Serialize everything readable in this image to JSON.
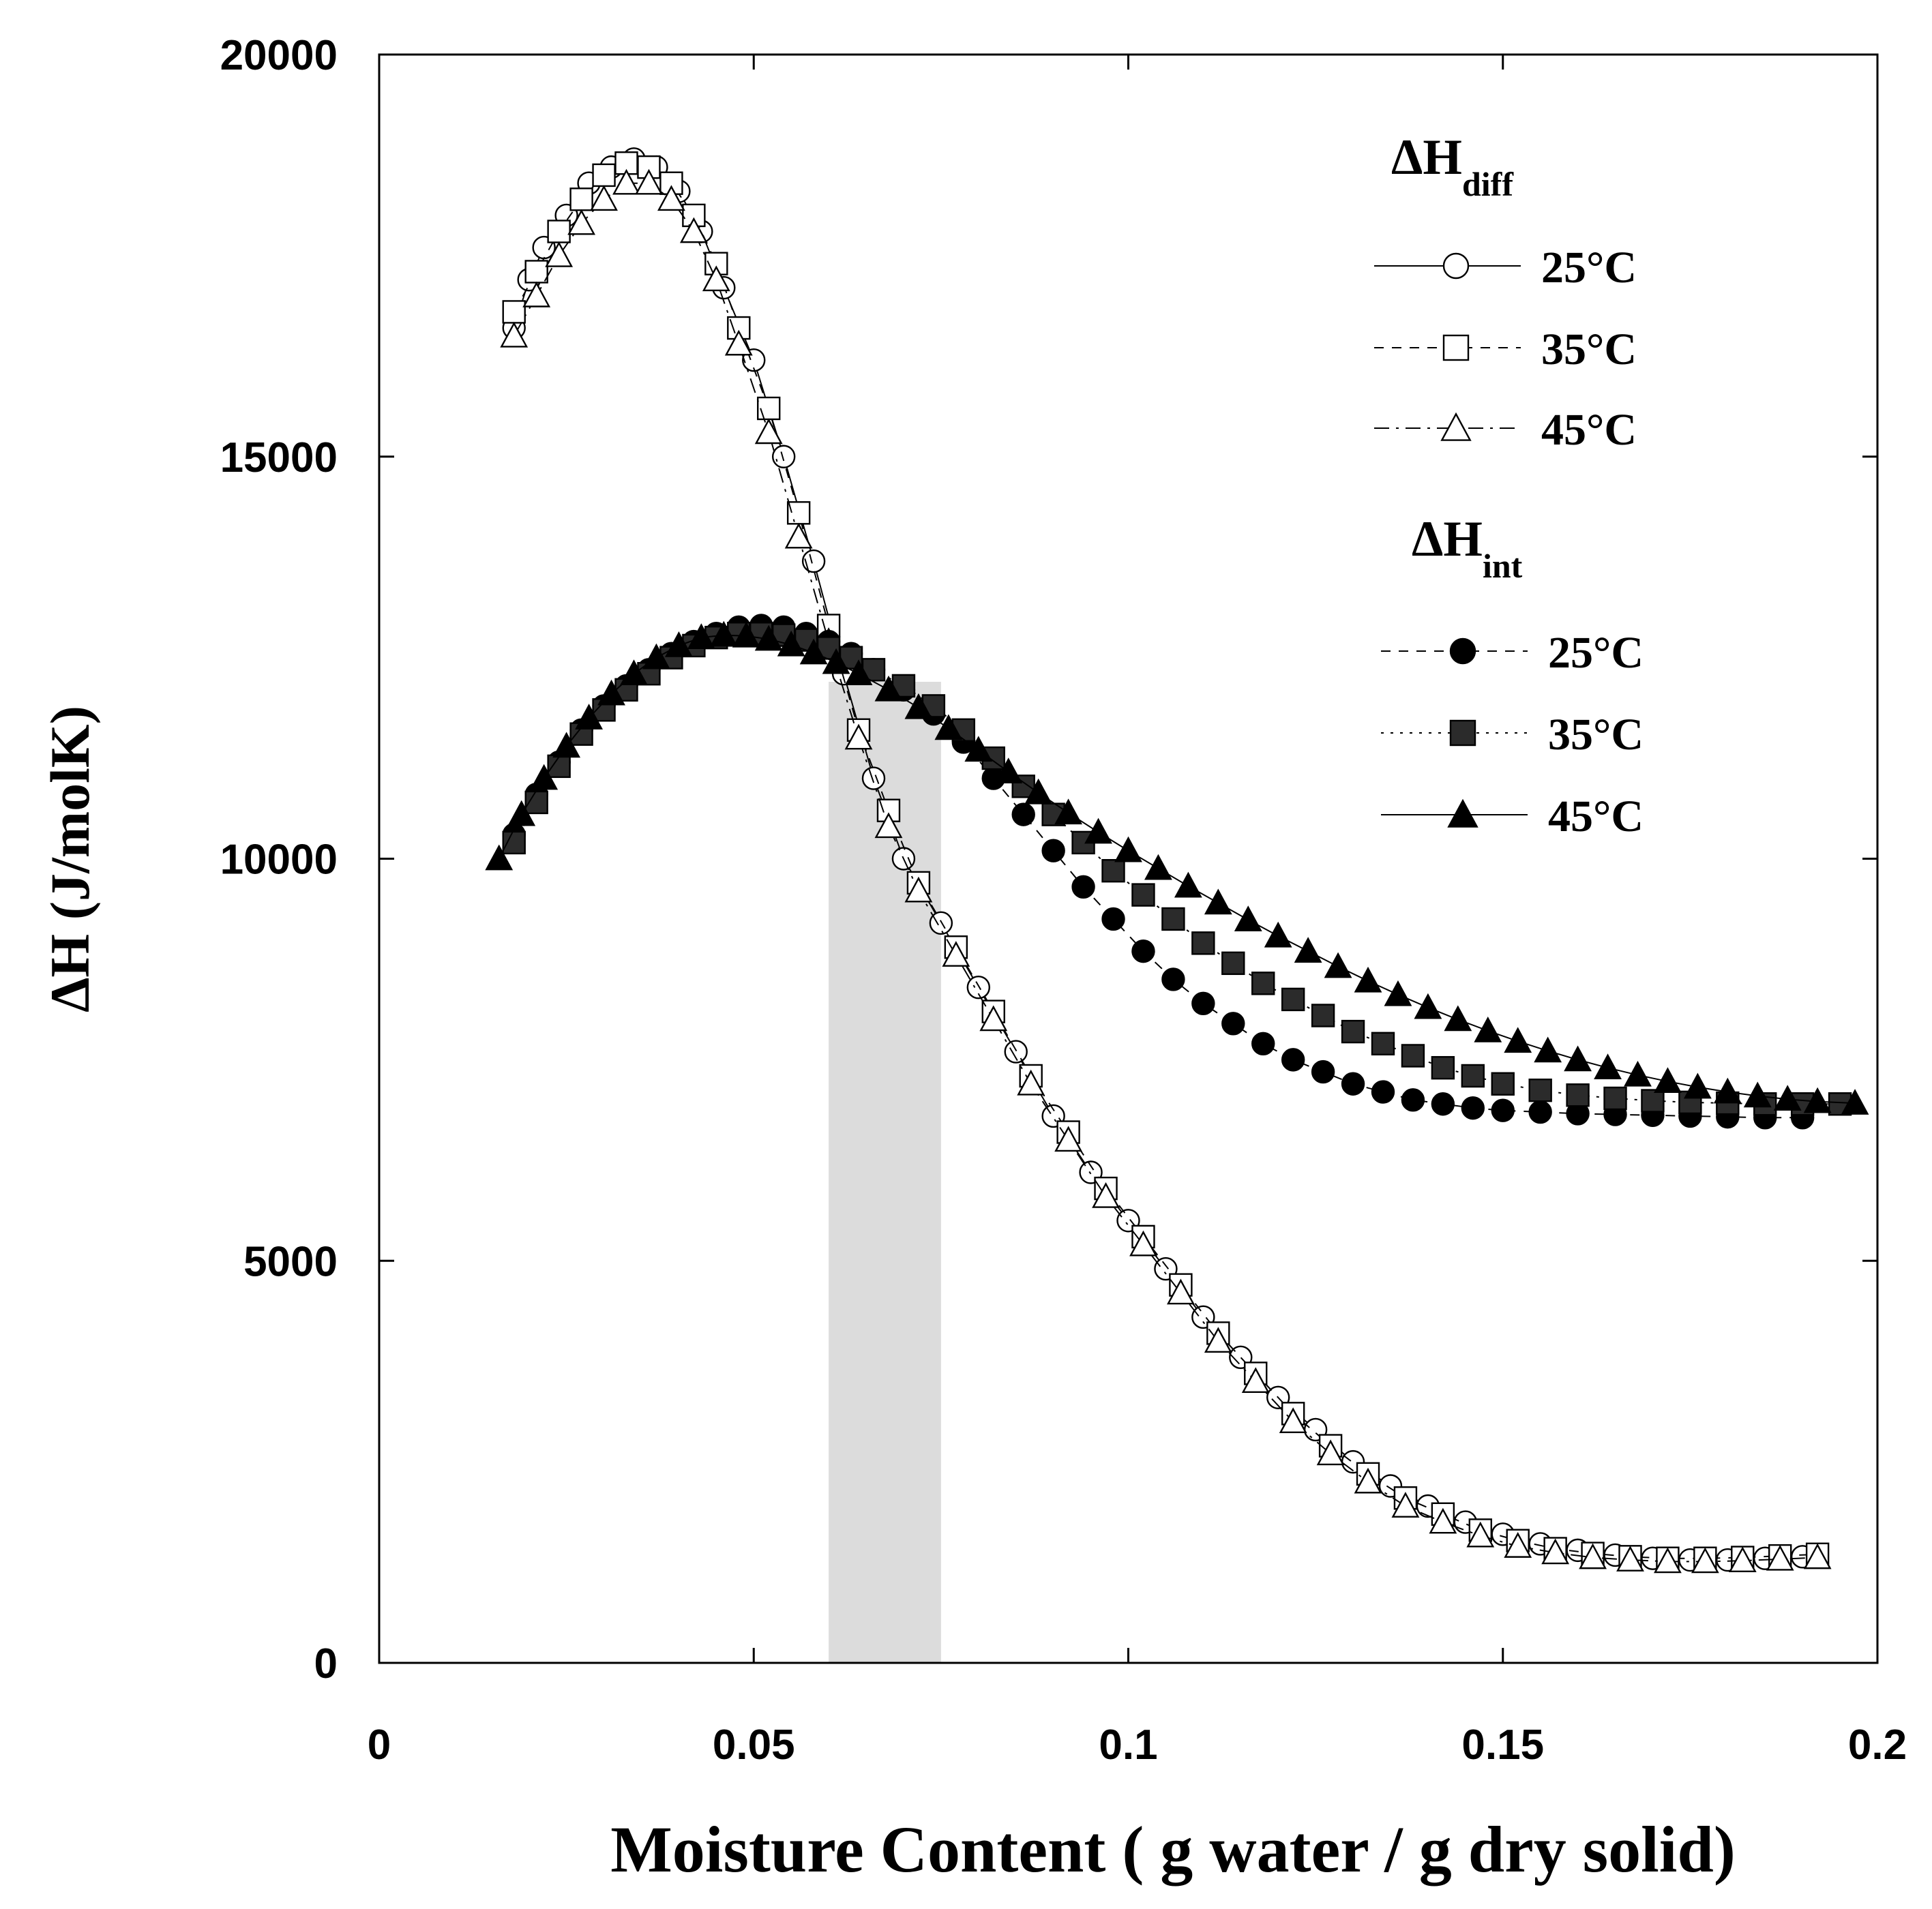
{
  "chart_data": {
    "type": "scatter",
    "xlabel": "Moisture Content ( g water / g dry solid)",
    "ylabel": "ΔH (J/molK)",
    "xlim": [
      0,
      0.2
    ],
    "ylim": [
      0,
      20000
    ],
    "x_ticks": [
      "0",
      "0.05",
      "0.1",
      "0.15",
      "0.2"
    ],
    "y_ticks": [
      "0",
      "5000",
      "10000",
      "15000",
      "20000"
    ],
    "x_tick_values": [
      0,
      0.05,
      0.1,
      0.15,
      0.2
    ],
    "y_tick_values": [
      0,
      5000,
      10000,
      15000,
      20000
    ],
    "grid": false,
    "legend_position": "top-right",
    "shaded_band": {
      "x_range": [
        0.06,
        0.075
      ],
      "y_top": 12200,
      "color": "#dcdcdc"
    },
    "legend_groups": [
      {
        "main": "ΔH",
        "sub": "diff"
      },
      {
        "main": "ΔH",
        "sub": "int"
      }
    ],
    "series": [
      {
        "name": "25°C",
        "group": "diff",
        "marker": "circle",
        "filled": false,
        "line": "solid",
        "points": [
          [
            0.018,
            16600
          ],
          [
            0.02,
            17200
          ],
          [
            0.022,
            17600
          ],
          [
            0.025,
            18000
          ],
          [
            0.028,
            18400
          ],
          [
            0.031,
            18600
          ],
          [
            0.034,
            18700
          ],
          [
            0.037,
            18600
          ],
          [
            0.04,
            18300
          ],
          [
            0.043,
            17800
          ],
          [
            0.046,
            17100
          ],
          [
            0.05,
            16200
          ],
          [
            0.054,
            15000
          ],
          [
            0.058,
            13700
          ],
          [
            0.062,
            12300
          ],
          [
            0.066,
            11000
          ],
          [
            0.07,
            10000
          ],
          [
            0.075,
            9200
          ],
          [
            0.08,
            8400
          ],
          [
            0.085,
            7600
          ],
          [
            0.09,
            6800
          ],
          [
            0.095,
            6100
          ],
          [
            0.1,
            5500
          ],
          [
            0.105,
            4900
          ],
          [
            0.11,
            4300
          ],
          [
            0.115,
            3800
          ],
          [
            0.12,
            3300
          ],
          [
            0.125,
            2900
          ],
          [
            0.13,
            2500
          ],
          [
            0.135,
            2200
          ],
          [
            0.14,
            1950
          ],
          [
            0.145,
            1750
          ],
          [
            0.15,
            1600
          ],
          [
            0.155,
            1480
          ],
          [
            0.16,
            1400
          ],
          [
            0.165,
            1340
          ],
          [
            0.17,
            1300
          ],
          [
            0.175,
            1280
          ],
          [
            0.18,
            1280
          ],
          [
            0.185,
            1300
          ],
          [
            0.19,
            1320
          ]
        ]
      },
      {
        "name": "35°C",
        "group": "diff",
        "marker": "square",
        "filled": false,
        "line": "dashed",
        "points": [
          [
            0.018,
            16800
          ],
          [
            0.021,
            17300
          ],
          [
            0.024,
            17800
          ],
          [
            0.027,
            18200
          ],
          [
            0.03,
            18500
          ],
          [
            0.033,
            18650
          ],
          [
            0.036,
            18600
          ],
          [
            0.039,
            18400
          ],
          [
            0.042,
            18000
          ],
          [
            0.045,
            17400
          ],
          [
            0.048,
            16600
          ],
          [
            0.052,
            15600
          ],
          [
            0.056,
            14300
          ],
          [
            0.06,
            12900
          ],
          [
            0.064,
            11600
          ],
          [
            0.068,
            10600
          ],
          [
            0.072,
            9700
          ],
          [
            0.077,
            8900
          ],
          [
            0.082,
            8100
          ],
          [
            0.087,
            7300
          ],
          [
            0.092,
            6600
          ],
          [
            0.097,
            5900
          ],
          [
            0.102,
            5300
          ],
          [
            0.107,
            4700
          ],
          [
            0.112,
            4100
          ],
          [
            0.117,
            3600
          ],
          [
            0.122,
            3100
          ],
          [
            0.127,
            2700
          ],
          [
            0.132,
            2350
          ],
          [
            0.137,
            2050
          ],
          [
            0.142,
            1850
          ],
          [
            0.147,
            1650
          ],
          [
            0.152,
            1520
          ],
          [
            0.157,
            1420
          ],
          [
            0.162,
            1360
          ],
          [
            0.167,
            1320
          ],
          [
            0.172,
            1300
          ],
          [
            0.177,
            1300
          ],
          [
            0.182,
            1310
          ],
          [
            0.187,
            1330
          ],
          [
            0.192,
            1350
          ]
        ]
      },
      {
        "name": "45°C",
        "group": "diff",
        "marker": "triangle",
        "filled": false,
        "line": "dash-dot",
        "points": [
          [
            0.018,
            16500
          ],
          [
            0.021,
            17000
          ],
          [
            0.024,
            17500
          ],
          [
            0.027,
            17900
          ],
          [
            0.03,
            18200
          ],
          [
            0.033,
            18400
          ],
          [
            0.036,
            18400
          ],
          [
            0.039,
            18200
          ],
          [
            0.042,
            17800
          ],
          [
            0.045,
            17200
          ],
          [
            0.048,
            16400
          ],
          [
            0.052,
            15300
          ],
          [
            0.056,
            14000
          ],
          [
            0.06,
            12700
          ],
          [
            0.064,
            11500
          ],
          [
            0.068,
            10400
          ],
          [
            0.072,
            9600
          ],
          [
            0.077,
            8800
          ],
          [
            0.082,
            8000
          ],
          [
            0.087,
            7200
          ],
          [
            0.092,
            6500
          ],
          [
            0.097,
            5800
          ],
          [
            0.102,
            5200
          ],
          [
            0.107,
            4600
          ],
          [
            0.112,
            4000
          ],
          [
            0.117,
            3500
          ],
          [
            0.122,
            3000
          ],
          [
            0.127,
            2600
          ],
          [
            0.132,
            2250
          ],
          [
            0.137,
            1950
          ],
          [
            0.142,
            1750
          ],
          [
            0.147,
            1580
          ],
          [
            0.152,
            1450
          ],
          [
            0.157,
            1370
          ],
          [
            0.162,
            1310
          ],
          [
            0.167,
            1280
          ],
          [
            0.172,
            1260
          ],
          [
            0.177,
            1260
          ],
          [
            0.182,
            1270
          ],
          [
            0.187,
            1290
          ],
          [
            0.192,
            1310
          ]
        ]
      },
      {
        "name": "25°C",
        "group": "int",
        "marker": "circle",
        "filled": true,
        "line": "dashed",
        "points": [
          [
            0.018,
            10300
          ],
          [
            0.021,
            10800
          ],
          [
            0.024,
            11200
          ],
          [
            0.027,
            11600
          ],
          [
            0.03,
            11900
          ],
          [
            0.033,
            12150
          ],
          [
            0.036,
            12350
          ],
          [
            0.039,
            12550
          ],
          [
            0.042,
            12700
          ],
          [
            0.045,
            12800
          ],
          [
            0.048,
            12880
          ],
          [
            0.051,
            12900
          ],
          [
            0.054,
            12880
          ],
          [
            0.057,
            12800
          ],
          [
            0.06,
            12700
          ],
          [
            0.063,
            12550
          ],
          [
            0.066,
            12350
          ],
          [
            0.07,
            12100
          ],
          [
            0.074,
            11800
          ],
          [
            0.078,
            11450
          ],
          [
            0.082,
            11000
          ],
          [
            0.086,
            10550
          ],
          [
            0.09,
            10100
          ],
          [
            0.094,
            9650
          ],
          [
            0.098,
            9250
          ],
          [
            0.102,
            8850
          ],
          [
            0.106,
            8500
          ],
          [
            0.11,
            8200
          ],
          [
            0.114,
            7950
          ],
          [
            0.118,
            7700
          ],
          [
            0.122,
            7500
          ],
          [
            0.126,
            7350
          ],
          [
            0.13,
            7200
          ],
          [
            0.134,
            7100
          ],
          [
            0.138,
            7000
          ],
          [
            0.142,
            6950
          ],
          [
            0.146,
            6900
          ],
          [
            0.15,
            6870
          ],
          [
            0.155,
            6850
          ],
          [
            0.16,
            6830
          ],
          [
            0.165,
            6820
          ],
          [
            0.17,
            6810
          ],
          [
            0.175,
            6800
          ],
          [
            0.18,
            6790
          ],
          [
            0.185,
            6780
          ],
          [
            0.19,
            6780
          ]
        ]
      },
      {
        "name": "35°C",
        "group": "int",
        "marker": "square",
        "filled": true,
        "line": "dotted",
        "points": [
          [
            0.018,
            10200
          ],
          [
            0.021,
            10700
          ],
          [
            0.024,
            11150
          ],
          [
            0.027,
            11550
          ],
          [
            0.03,
            11850
          ],
          [
            0.033,
            12100
          ],
          [
            0.036,
            12300
          ],
          [
            0.039,
            12500
          ],
          [
            0.042,
            12650
          ],
          [
            0.045,
            12750
          ],
          [
            0.048,
            12800
          ],
          [
            0.051,
            12800
          ],
          [
            0.054,
            12780
          ],
          [
            0.057,
            12720
          ],
          [
            0.06,
            12620
          ],
          [
            0.063,
            12500
          ],
          [
            0.066,
            12350
          ],
          [
            0.07,
            12150
          ],
          [
            0.074,
            11900
          ],
          [
            0.078,
            11600
          ],
          [
            0.082,
            11250
          ],
          [
            0.086,
            10900
          ],
          [
            0.09,
            10550
          ],
          [
            0.094,
            10200
          ],
          [
            0.098,
            9850
          ],
          [
            0.102,
            9550
          ],
          [
            0.106,
            9250
          ],
          [
            0.11,
            8950
          ],
          [
            0.114,
            8700
          ],
          [
            0.118,
            8450
          ],
          [
            0.122,
            8250
          ],
          [
            0.126,
            8050
          ],
          [
            0.13,
            7850
          ],
          [
            0.134,
            7700
          ],
          [
            0.138,
            7550
          ],
          [
            0.142,
            7400
          ],
          [
            0.146,
            7300
          ],
          [
            0.15,
            7200
          ],
          [
            0.155,
            7120
          ],
          [
            0.16,
            7060
          ],
          [
            0.165,
            7020
          ],
          [
            0.17,
            6990
          ],
          [
            0.175,
            6970
          ],
          [
            0.18,
            6960
          ],
          [
            0.185,
            6950
          ],
          [
            0.19,
            6950
          ],
          [
            0.195,
            6950
          ]
        ]
      },
      {
        "name": "45°C",
        "group": "int",
        "marker": "triangle",
        "filled": true,
        "line": "solid",
        "points": [
          [
            0.016,
            10000
          ],
          [
            0.019,
            10550
          ],
          [
            0.022,
            11000
          ],
          [
            0.025,
            11400
          ],
          [
            0.028,
            11750
          ],
          [
            0.031,
            12050
          ],
          [
            0.034,
            12300
          ],
          [
            0.037,
            12500
          ],
          [
            0.04,
            12650
          ],
          [
            0.043,
            12750
          ],
          [
            0.046,
            12780
          ],
          [
            0.049,
            12770
          ],
          [
            0.052,
            12730
          ],
          [
            0.055,
            12660
          ],
          [
            0.058,
            12560
          ],
          [
            0.061,
            12440
          ],
          [
            0.064,
            12300
          ],
          [
            0.068,
            12100
          ],
          [
            0.072,
            11880
          ],
          [
            0.076,
            11620
          ],
          [
            0.08,
            11350
          ],
          [
            0.084,
            11080
          ],
          [
            0.088,
            10820
          ],
          [
            0.092,
            10570
          ],
          [
            0.096,
            10330
          ],
          [
            0.1,
            10100
          ],
          [
            0.104,
            9880
          ],
          [
            0.108,
            9660
          ],
          [
            0.112,
            9450
          ],
          [
            0.116,
            9240
          ],
          [
            0.12,
            9040
          ],
          [
            0.124,
            8850
          ],
          [
            0.128,
            8660
          ],
          [
            0.132,
            8480
          ],
          [
            0.136,
            8310
          ],
          [
            0.14,
            8150
          ],
          [
            0.144,
            8000
          ],
          [
            0.148,
            7860
          ],
          [
            0.152,
            7730
          ],
          [
            0.156,
            7610
          ],
          [
            0.16,
            7500
          ],
          [
            0.164,
            7400
          ],
          [
            0.168,
            7310
          ],
          [
            0.172,
            7230
          ],
          [
            0.176,
            7160
          ],
          [
            0.18,
            7100
          ],
          [
            0.184,
            7050
          ],
          [
            0.188,
            7010
          ],
          [
            0.192,
            6980
          ],
          [
            0.197,
            6960
          ]
        ]
      }
    ]
  }
}
